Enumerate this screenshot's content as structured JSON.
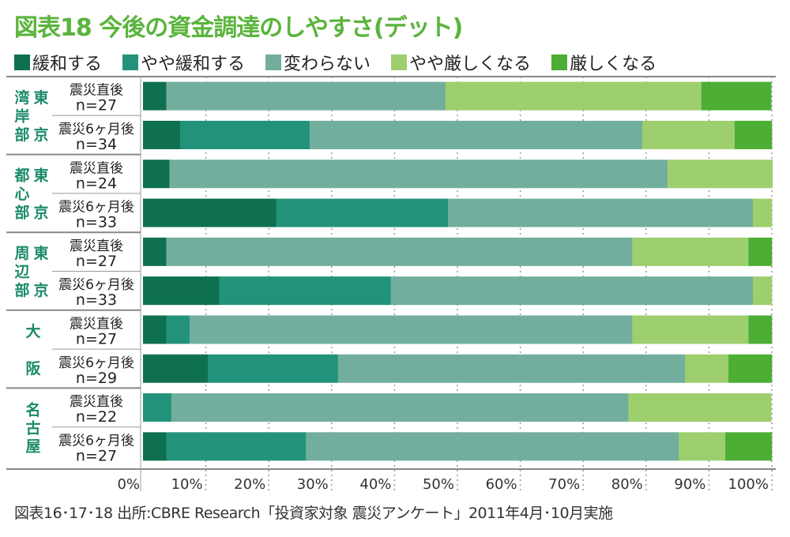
{
  "title": "図表18 今後の資金調達のしやすさ(デット)",
  "footer": "図表16･17･18 出所:CBRE Research「投資家対象 震災アンケート」2011年4月･10月実施",
  "chart_data": {
    "type": "bar",
    "orientation": "horizontal",
    "stacked": "100%",
    "title": "図表18 今後の資金調達のしやすさ(デット)",
    "xlim": [
      0,
      100
    ],
    "x_ticks": [
      "0%",
      "10%",
      "20%",
      "30%",
      "40%",
      "50%",
      "60%",
      "70%",
      "80%",
      "90%",
      "100%"
    ],
    "grid": "vertical dotted",
    "legend_position": "top",
    "series": [
      {
        "name": "緩和する",
        "color": "#0f7050"
      },
      {
        "name": "やや緩和する",
        "color": "#22937a"
      },
      {
        "name": "変わらない",
        "color": "#72ae9e"
      },
      {
        "name": "やや厳しくなる",
        "color": "#9dcf6e"
      },
      {
        "name": "厳しくなる",
        "color": "#4cae34"
      }
    ],
    "groups": [
      {
        "label": "東京湾岸部",
        "rows": [
          {
            "label": "震災直後",
            "n": "n=27",
            "values": [
              3.7,
              0,
              44.4,
              40.7,
              11.1
            ]
          },
          {
            "label": "震災6ヶ月後",
            "n": "n=34",
            "values": [
              5.9,
              20.6,
              52.9,
              14.7,
              5.9
            ]
          }
        ]
      },
      {
        "label": "東京都心部",
        "rows": [
          {
            "label": "震災直後",
            "n": "n=24",
            "values": [
              4.2,
              0,
              79.2,
              16.7,
              0
            ]
          },
          {
            "label": "震災6ヶ月後",
            "n": "n=33",
            "values": [
              21.2,
              27.3,
              48.5,
              3.0,
              0
            ]
          }
        ]
      },
      {
        "label": "東京周辺部",
        "rows": [
          {
            "label": "震災直後",
            "n": "n=27",
            "values": [
              3.7,
              0,
              74.1,
              18.5,
              3.7
            ]
          },
          {
            "label": "震災6ヶ月後",
            "n": "n=33",
            "values": [
              12.1,
              27.3,
              57.6,
              3.0,
              0
            ]
          }
        ]
      },
      {
        "label": "大阪",
        "rows": [
          {
            "label": "震災直後",
            "n": "n=27",
            "values": [
              3.7,
              3.7,
              70.4,
              18.5,
              3.7
            ]
          },
          {
            "label": "震災6ヶ月後",
            "n": "n=29",
            "values": [
              10.3,
              20.7,
              55.2,
              6.9,
              6.9
            ]
          }
        ]
      },
      {
        "label": "名古屋",
        "rows": [
          {
            "label": "震災直後",
            "n": "n=22",
            "values": [
              0,
              4.5,
              72.7,
              22.7,
              0
            ]
          },
          {
            "label": "震災6ヶ月後",
            "n": "n=27",
            "values": [
              3.7,
              22.2,
              59.3,
              7.4,
              7.4
            ]
          }
        ]
      }
    ]
  }
}
